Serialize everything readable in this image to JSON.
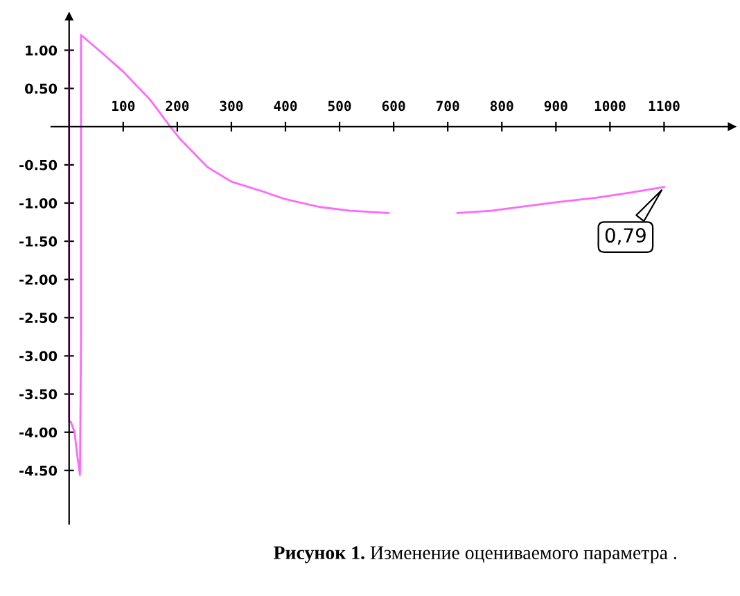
{
  "chart_data": {
    "type": "line",
    "title": "Рисунок 1.",
    "subtitle": "Изменение оцениваемого параметра .",
    "x": [
      0,
      0,
      3,
      10,
      15,
      20,
      22,
      22,
      60,
      100,
      150,
      187,
      205,
      256,
      300,
      359,
      400,
      462,
      520,
      590,
      650,
      718,
      780,
      846,
      900,
      974,
      1040,
      1100
    ],
    "series": [
      {
        "color": "#ff66ff",
        "values": [
          1.0,
          -3.86,
          -3.86,
          -4.0,
          -4.3,
          -4.56,
          -2.77,
          1.2,
          0.97,
          0.72,
          0.35,
          0.0,
          -0.16,
          -0.53,
          -0.72,
          -0.85,
          -0.95,
          -1.05,
          -1.1,
          -1.13,
          null,
          -1.13,
          -1.1,
          -1.04,
          -0.99,
          -0.93,
          -0.86,
          -0.79
        ]
      }
    ],
    "xlim": [
      -33,
      1225
    ],
    "ylim": [
      -5.2,
      1.44
    ],
    "xticks": [
      100,
      200,
      300,
      400,
      500,
      600,
      700,
      800,
      900,
      1000,
      1100
    ],
    "yticks": [
      {
        "value": 1.0,
        "label": "1.00"
      },
      {
        "value": 0.5,
        "label": "0.50"
      },
      {
        "value": -0.5,
        "label": "-0.50"
      },
      {
        "value": -1.0,
        "label": "-1.00"
      },
      {
        "value": -1.5,
        "label": "-1.50"
      },
      {
        "value": -2.0,
        "label": "-2.00"
      },
      {
        "value": -2.5,
        "label": "-2.50"
      },
      {
        "value": -3.0,
        "label": "-3.00"
      },
      {
        "value": -3.5,
        "label": "-3.50"
      },
      {
        "value": -4.0,
        "label": "-4.00"
      },
      {
        "value": -4.5,
        "label": "-4.50"
      }
    ],
    "annotations": [
      {
        "text": "0,79",
        "x": 1100,
        "y": -0.79
      }
    ],
    "grid": false,
    "legend": false,
    "marker": "none",
    "line_style": "solid"
  }
}
